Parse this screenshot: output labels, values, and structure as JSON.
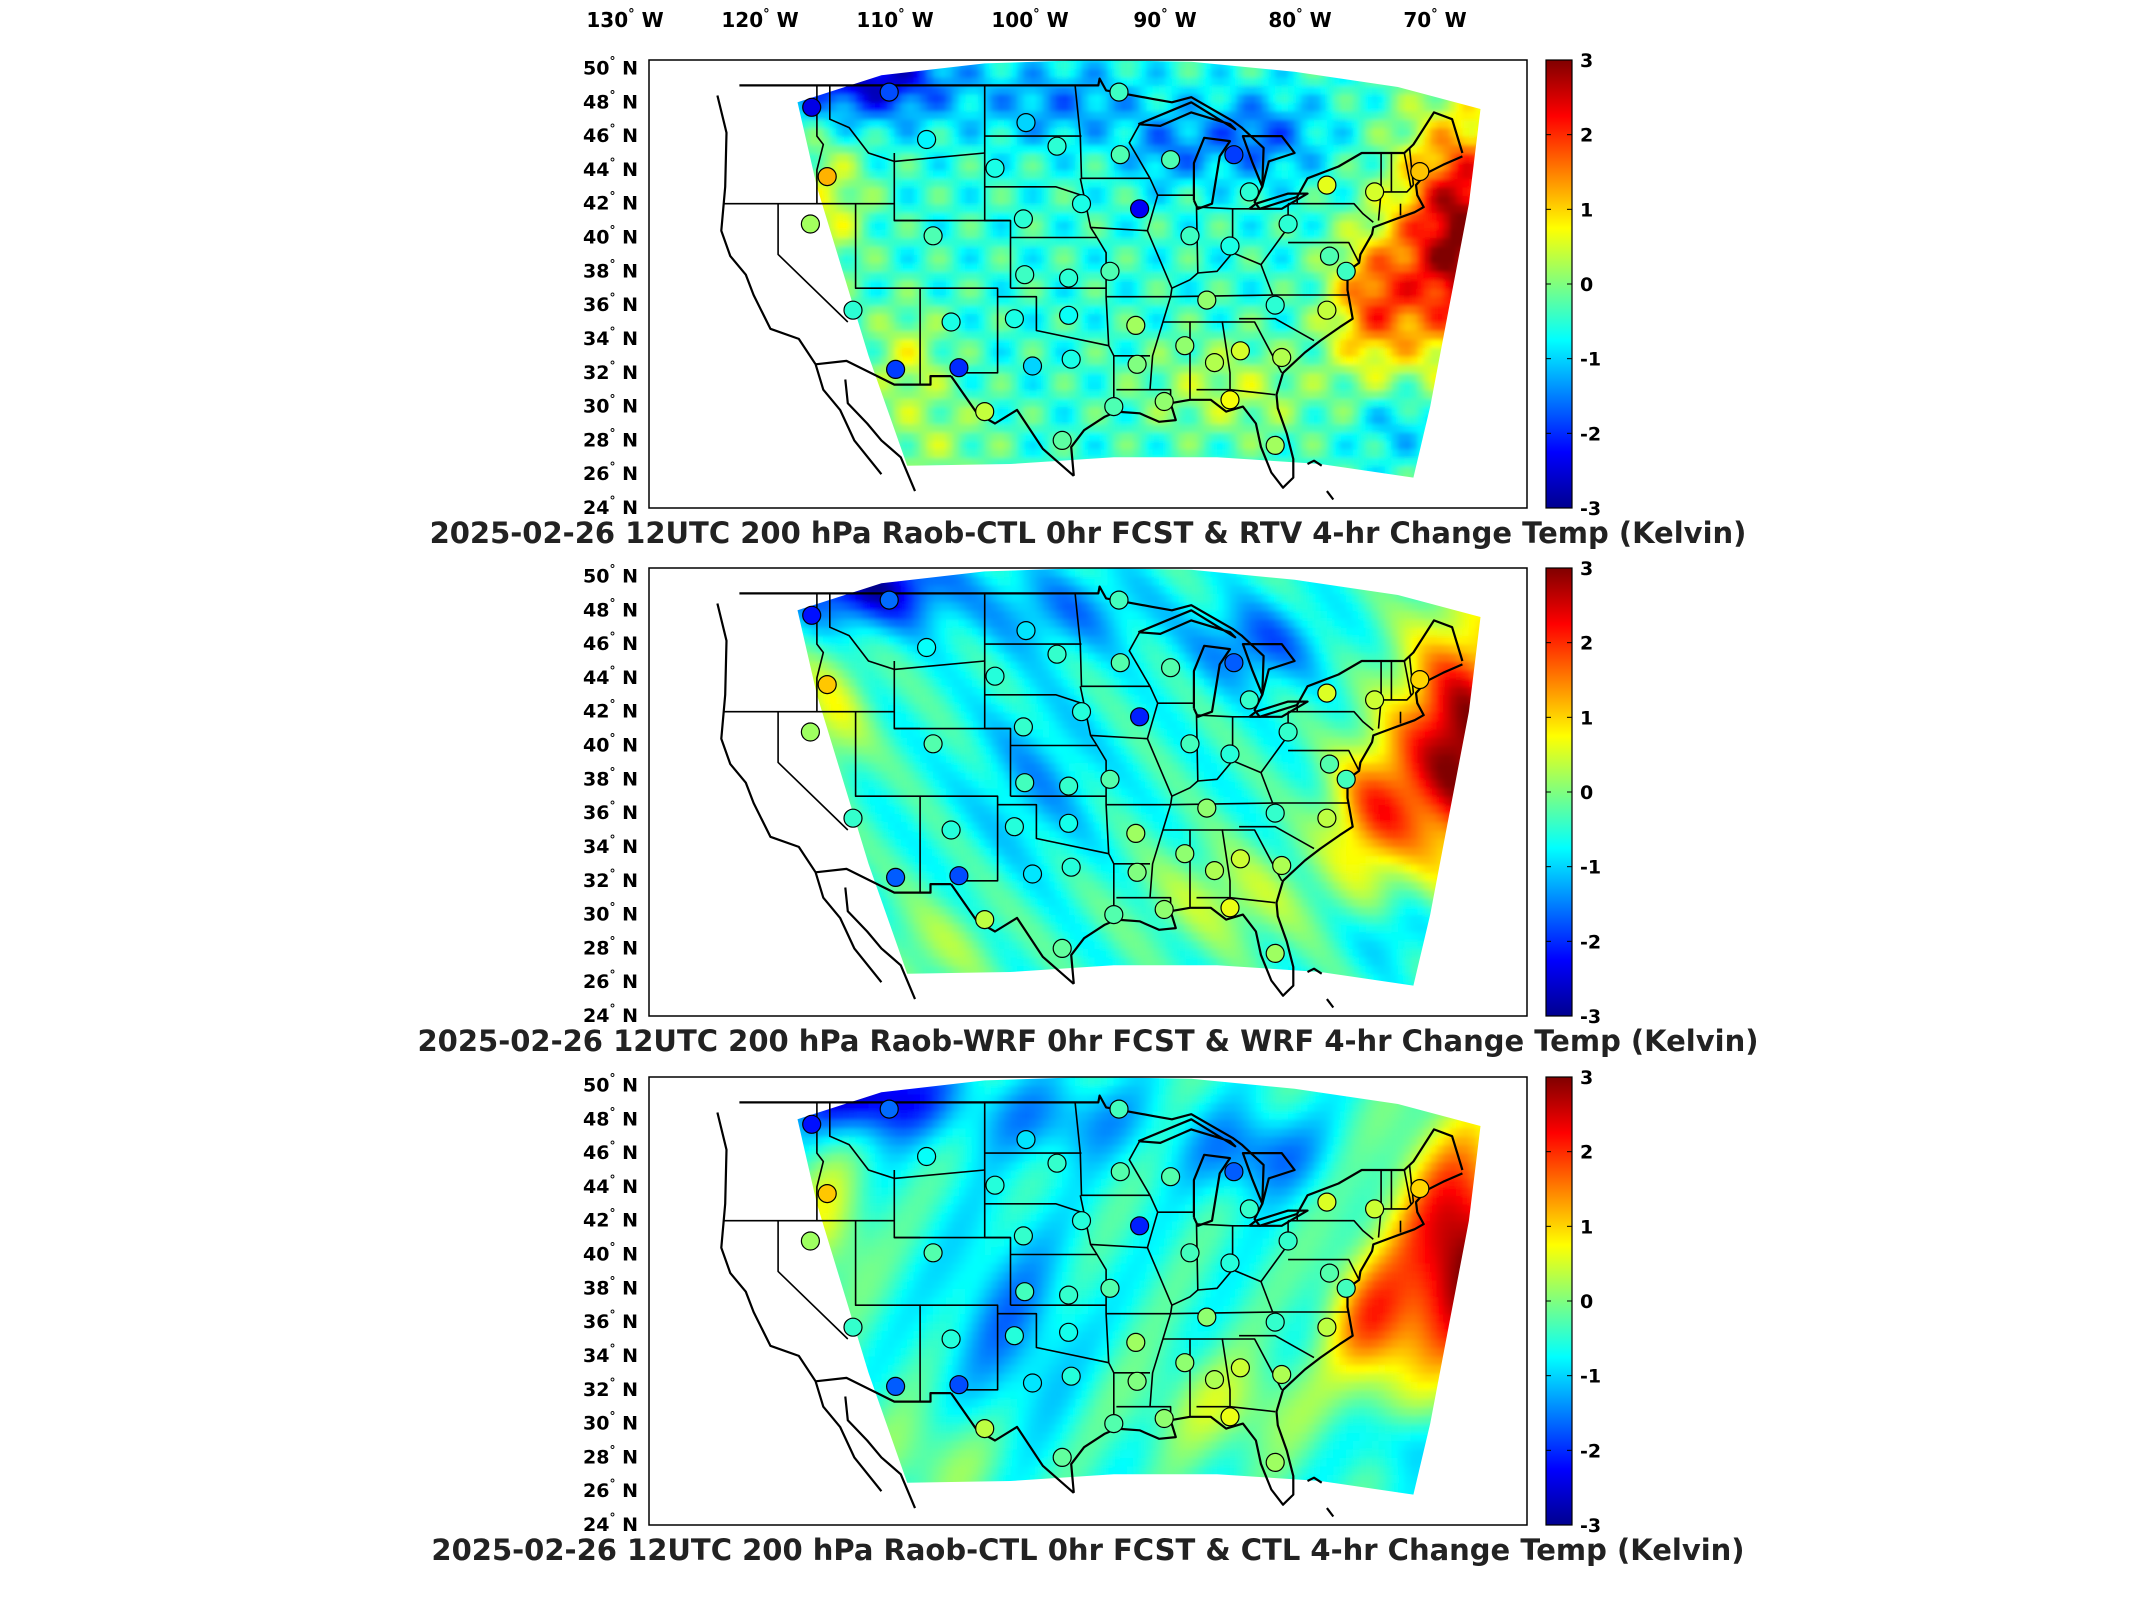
{
  "lon_labels": [
    "130",
    "120",
    "110",
    "100",
    "90",
    "80",
    "70"
  ],
  "lon_suffix": "W",
  "lat_labels": [
    "50",
    "48",
    "46",
    "44",
    "42",
    "40",
    "38",
    "36",
    "34",
    "32",
    "30",
    "28",
    "26",
    "24"
  ],
  "lat_suffix": "N",
  "degree_symbol": "°",
  "colorbar": {
    "ticks": [
      "3",
      "2",
      "1",
      "0",
      "-1",
      "-2",
      "-3"
    ],
    "colormap": "jet",
    "min": -3,
    "max": 3
  },
  "panels": [
    {
      "caption": "2025-02-26 12UTC 200 hPa Raob-CTL 0hr FCST & RTV 4-hr Change Temp (Kelvin)",
      "field": "rtv"
    },
    {
      "caption": "2025-02-26 12UTC 200 hPa Raob-WRF 0hr FCST & WRF 4-hr Change Temp (Kelvin)",
      "field": "wrf"
    },
    {
      "caption": "2025-02-26 12UTC 200 hPa Raob-CTL 0hr FCST & CTL 4-hr Change Temp (Kelvin)",
      "field": "ctl"
    }
  ],
  "stations": [
    {
      "lon": -117.4,
      "lat": 47.7,
      "v": -2.4
    },
    {
      "lon": -111.4,
      "lat": 48.6,
      "v": -1.8
    },
    {
      "lon": -100.8,
      "lat": 46.8,
      "v": -1.0
    },
    {
      "lon": -93.6,
      "lat": 48.6,
      "v": -0.4
    },
    {
      "lon": -116.2,
      "lat": 43.6,
      "v": 1.2
    },
    {
      "lon": -108.5,
      "lat": 45.8,
      "v": -0.8
    },
    {
      "lon": -103.2,
      "lat": 44.1,
      "v": -0.6
    },
    {
      "lon": -98.4,
      "lat": 45.4,
      "v": -0.5
    },
    {
      "lon": -93.5,
      "lat": 44.9,
      "v": -0.3
    },
    {
      "lon": -89.6,
      "lat": 44.6,
      "v": -0.3
    },
    {
      "lon": -84.7,
      "lat": 44.9,
      "v": -1.9
    },
    {
      "lon": -83.5,
      "lat": 42.7,
      "v": -0.5
    },
    {
      "lon": -77.5,
      "lat": 43.1,
      "v": 0.6
    },
    {
      "lon": -73.8,
      "lat": 42.7,
      "v": 0.5
    },
    {
      "lon": -70.3,
      "lat": 43.9,
      "v": 1.1
    },
    {
      "lon": -117.5,
      "lat": 40.8,
      "v": 0.2
    },
    {
      "lon": -108.0,
      "lat": 40.1,
      "v": -0.3
    },
    {
      "lon": -101.0,
      "lat": 41.1,
      "v": -0.5
    },
    {
      "lon": -96.5,
      "lat": 42.0,
      "v": -0.6
    },
    {
      "lon": -92.0,
      "lat": 41.7,
      "v": -2.3
    },
    {
      "lon": -88.1,
      "lat": 40.1,
      "v": -0.4
    },
    {
      "lon": -85.0,
      "lat": 39.5,
      "v": -0.6
    },
    {
      "lon": -80.5,
      "lat": 40.8,
      "v": -0.5
    },
    {
      "lon": -77.3,
      "lat": 38.9,
      "v": -0.3
    },
    {
      "lon": -76.0,
      "lat": 38.0,
      "v": -0.4
    },
    {
      "lon": -114.2,
      "lat": 35.7,
      "v": -0.5
    },
    {
      "lon": -106.6,
      "lat": 35.0,
      "v": -0.6
    },
    {
      "lon": -100.9,
      "lat": 37.8,
      "v": -0.4
    },
    {
      "lon": -97.5,
      "lat": 37.6,
      "v": -0.5
    },
    {
      "lon": -94.3,
      "lat": 38.0,
      "v": -0.3
    },
    {
      "lon": -86.8,
      "lat": 36.3,
      "v": 0.1
    },
    {
      "lon": -81.5,
      "lat": 36.0,
      "v": -0.5
    },
    {
      "lon": -77.5,
      "lat": 35.7,
      "v": 0.4
    },
    {
      "lon": -110.9,
      "lat": 32.2,
      "v": -1.9
    },
    {
      "lon": -106.0,
      "lat": 32.3,
      "v": -2.0
    },
    {
      "lon": -101.7,
      "lat": 35.2,
      "v": -0.6
    },
    {
      "lon": -97.5,
      "lat": 35.4,
      "v": -0.7
    },
    {
      "lon": -92.3,
      "lat": 34.8,
      "v": 0.2
    },
    {
      "lon": -88.5,
      "lat": 33.6,
      "v": 0.1
    },
    {
      "lon": -86.2,
      "lat": 32.6,
      "v": 0.3
    },
    {
      "lon": -84.2,
      "lat": 33.3,
      "v": 0.5
    },
    {
      "lon": -81.0,
      "lat": 32.9,
      "v": 0.3
    },
    {
      "lon": -100.3,
      "lat": 32.4,
      "v": -1.0
    },
    {
      "lon": -97.3,
      "lat": 32.8,
      "v": -0.6
    },
    {
      "lon": -92.2,
      "lat": 32.5,
      "v": 0.0
    },
    {
      "lon": -104.0,
      "lat": 29.7,
      "v": 0.4
    },
    {
      "lon": -98.0,
      "lat": 28.0,
      "v": -0.2
    },
    {
      "lon": -94.0,
      "lat": 30.0,
      "v": -0.3
    },
    {
      "lon": -90.1,
      "lat": 30.3,
      "v": 0.1
    },
    {
      "lon": -85.0,
      "lat": 30.4,
      "v": 0.7
    },
    {
      "lon": -81.5,
      "lat": 27.7,
      "v": 0.2
    }
  ]
}
